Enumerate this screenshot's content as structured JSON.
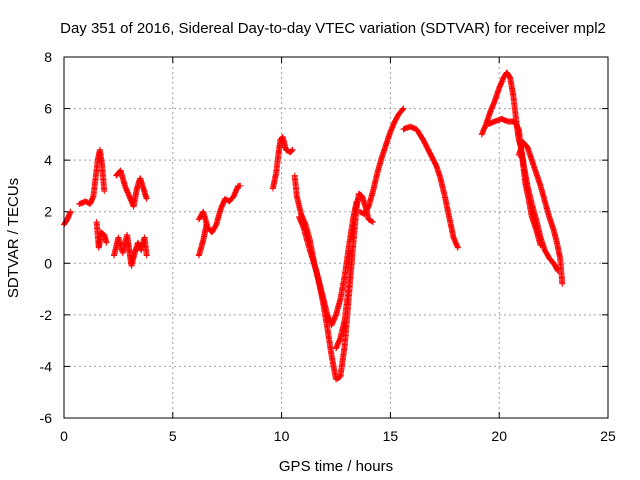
{
  "chart_data": {
    "type": "scatter",
    "title": "Day 351 of 2016, Sidereal Day-to-day VTEC variation (SDTVAR) for receiver mpl2",
    "xlabel": "GPS time / hours",
    "ylabel": "SDTVAR / TECUs",
    "xlim": [
      0,
      25
    ],
    "ylim": [
      -6,
      8
    ],
    "xticks": [
      0,
      5,
      10,
      15,
      20,
      25
    ],
    "yticks": [
      -6,
      -4,
      -2,
      0,
      2,
      4,
      6,
      8
    ],
    "grid": true,
    "marker": "plus",
    "series": [
      {
        "name": "SDTVAR",
        "color": "#ff0000",
        "segments": [
          [
            [
              0.0,
              1.5
            ],
            [
              0.15,
              1.7
            ],
            [
              0.3,
              2.0
            ]
          ],
          [
            [
              0.7,
              2.3
            ],
            [
              1.0,
              2.4
            ],
            [
              1.2,
              2.3
            ],
            [
              1.35,
              2.6
            ],
            [
              1.45,
              3.3
            ],
            [
              1.55,
              4.0
            ],
            [
              1.65,
              4.4
            ],
            [
              1.75,
              3.8
            ],
            [
              1.85,
              2.8
            ]
          ],
          [
            [
              1.5,
              1.6
            ],
            [
              1.6,
              0.6
            ],
            [
              1.7,
              1.2
            ],
            [
              1.85,
              1.1
            ],
            [
              1.95,
              0.8
            ]
          ],
          [
            [
              2.3,
              0.3
            ],
            [
              2.5,
              1.0
            ],
            [
              2.7,
              0.4
            ],
            [
              2.9,
              1.1
            ],
            [
              3.0,
              0.5
            ],
            [
              3.1,
              -0.1
            ],
            [
              3.25,
              0.4
            ],
            [
              3.4,
              0.8
            ],
            [
              3.55,
              0.5
            ],
            [
              3.7,
              1.0
            ],
            [
              3.8,
              0.3
            ]
          ],
          [
            [
              2.4,
              3.4
            ],
            [
              2.6,
              3.6
            ],
            [
              2.8,
              3.0
            ],
            [
              3.0,
              2.6
            ],
            [
              3.2,
              2.2
            ],
            [
              3.35,
              2.9
            ],
            [
              3.5,
              3.3
            ],
            [
              3.65,
              2.9
            ],
            [
              3.8,
              2.5
            ]
          ],
          [
            [
              6.2,
              1.7
            ],
            [
              6.4,
              2.0
            ],
            [
              6.6,
              1.4
            ],
            [
              6.8,
              1.2
            ],
            [
              7.0,
              1.5
            ],
            [
              7.2,
              2.1
            ],
            [
              7.4,
              2.5
            ],
            [
              7.6,
              2.4
            ],
            [
              7.8,
              2.6
            ],
            [
              8.0,
              3.0
            ],
            [
              8.1,
              3.0
            ]
          ],
          [
            [
              6.2,
              0.3
            ],
            [
              6.4,
              0.9
            ],
            [
              6.55,
              1.5
            ]
          ],
          [
            [
              9.6,
              2.9
            ],
            [
              9.75,
              3.5
            ],
            [
              9.85,
              4.2
            ],
            [
              9.95,
              4.8
            ],
            [
              10.05,
              4.9
            ],
            [
              10.2,
              4.4
            ],
            [
              10.4,
              4.3
            ],
            [
              10.5,
              4.4
            ]
          ],
          [
            [
              10.6,
              3.4
            ],
            [
              10.7,
              2.6
            ],
            [
              10.9,
              1.9
            ],
            [
              11.1,
              1.5
            ],
            [
              11.3,
              0.9
            ],
            [
              11.5,
              0.0
            ],
            [
              11.7,
              -0.7
            ],
            [
              11.9,
              -1.5
            ],
            [
              12.1,
              -2.5
            ],
            [
              12.3,
              -3.6
            ],
            [
              12.5,
              -4.5
            ],
            [
              12.7,
              -4.4
            ],
            [
              12.9,
              -3.2
            ],
            [
              13.1,
              -1.2
            ],
            [
              13.3,
              0.8
            ],
            [
              13.45,
              2.2
            ],
            [
              13.55,
              2.7
            ],
            [
              13.7,
              2.6
            ],
            [
              13.85,
              2.2
            ],
            [
              14.0,
              1.7
            ],
            [
              14.2,
              1.6
            ]
          ],
          [
            [
              10.8,
              1.8
            ],
            [
              11.0,
              1.4
            ],
            [
              11.3,
              0.5
            ],
            [
              11.6,
              -0.3
            ],
            [
              11.9,
              -1.3
            ],
            [
              12.1,
              -2.0
            ],
            [
              12.3,
              -2.4
            ],
            [
              12.5,
              -2.0
            ],
            [
              12.7,
              -1.4
            ],
            [
              12.9,
              -0.5
            ],
            [
              13.1,
              0.7
            ],
            [
              13.3,
              1.8
            ],
            [
              13.45,
              2.4
            ]
          ],
          [
            [
              12.5,
              -3.3
            ],
            [
              12.7,
              -2.9
            ],
            [
              12.9,
              -2.2
            ],
            [
              13.1,
              -0.8
            ],
            [
              13.25,
              0.6
            ]
          ],
          [
            [
              13.6,
              2.0
            ],
            [
              13.8,
              1.9
            ],
            [
              14.0,
              2.2
            ],
            [
              14.2,
              2.8
            ],
            [
              14.4,
              3.5
            ],
            [
              14.6,
              4.1
            ],
            [
              14.8,
              4.6
            ],
            [
              15.0,
              5.1
            ],
            [
              15.2,
              5.5
            ],
            [
              15.4,
              5.8
            ],
            [
              15.6,
              6.0
            ]
          ],
          [
            [
              15.6,
              5.2
            ],
            [
              15.9,
              5.3
            ],
            [
              16.2,
              5.2
            ],
            [
              16.5,
              4.8
            ],
            [
              16.8,
              4.3
            ],
            [
              17.1,
              3.8
            ],
            [
              17.3,
              3.3
            ],
            [
              17.5,
              2.6
            ],
            [
              17.7,
              1.8
            ],
            [
              17.9,
              1.0
            ],
            [
              18.1,
              0.6
            ]
          ],
          [
            [
              19.2,
              5.0
            ],
            [
              19.4,
              5.4
            ],
            [
              19.6,
              5.9
            ],
            [
              19.8,
              6.3
            ],
            [
              20.0,
              6.8
            ],
            [
              20.2,
              7.2
            ],
            [
              20.35,
              7.4
            ],
            [
              20.5,
              7.2
            ],
            [
              20.65,
              6.5
            ],
            [
              20.8,
              5.4
            ],
            [
              20.9,
              4.8
            ],
            [
              21.0,
              4.5
            ],
            [
              21.15,
              3.7
            ],
            [
              21.3,
              3.0
            ],
            [
              21.5,
              2.3
            ],
            [
              21.7,
              1.7
            ],
            [
              21.9,
              1.0
            ],
            [
              22.1,
              0.5
            ],
            [
              22.3,
              0.2
            ],
            [
              22.5,
              0.0
            ],
            [
              22.7,
              -0.3
            ]
          ],
          [
            [
              19.5,
              5.4
            ],
            [
              19.8,
              5.5
            ],
            [
              20.1,
              5.6
            ],
            [
              20.4,
              5.5
            ],
            [
              20.7,
              5.5
            ],
            [
              20.9,
              5.2
            ],
            [
              21.0,
              4.5
            ],
            [
              21.1,
              3.8
            ],
            [
              21.2,
              3.1
            ],
            [
              21.35,
              2.5
            ],
            [
              21.5,
              1.8
            ],
            [
              21.7,
              1.3
            ],
            [
              21.9,
              0.7
            ]
          ],
          [
            [
              20.9,
              4.2
            ],
            [
              21.1,
              4.7
            ],
            [
              21.3,
              4.5
            ],
            [
              21.5,
              4.0
            ],
            [
              21.7,
              3.5
            ],
            [
              21.9,
              3.0
            ],
            [
              22.1,
              2.4
            ],
            [
              22.3,
              1.8
            ],
            [
              22.5,
              1.3
            ],
            [
              22.65,
              0.8
            ],
            [
              22.8,
              0.2
            ],
            [
              22.9,
              -0.8
            ]
          ]
        ]
      }
    ]
  }
}
